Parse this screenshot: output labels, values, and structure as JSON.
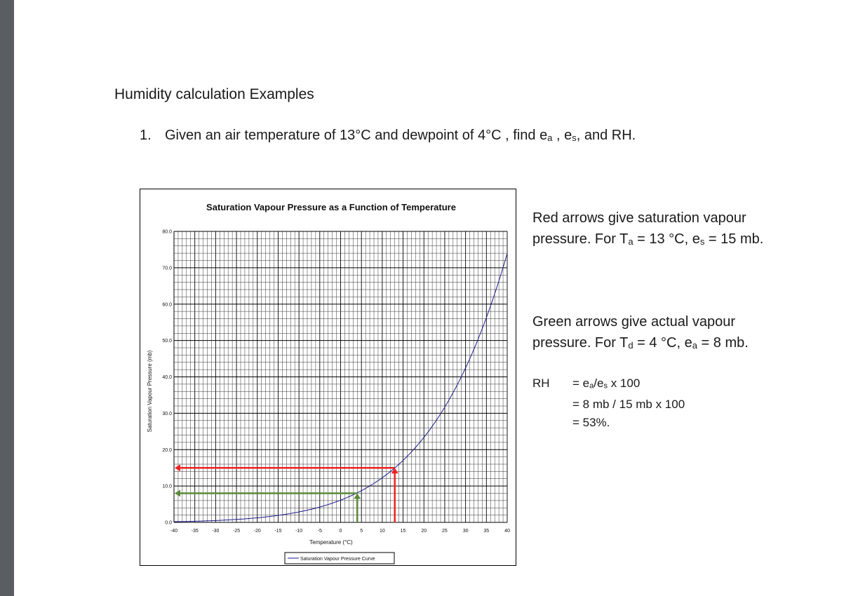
{
  "document": {
    "title": "Humidity calculation Examples",
    "question": {
      "number": "1.",
      "text_before": "Given an air temperature of 13°C and dewpoint of 4°C , find e",
      "sub_a": "a",
      "mid1": " , e",
      "sub_s": "s",
      "tail": ",  and RH."
    },
    "notes": {
      "red_1": "Red arrows give saturation vapour pressure. For T",
      "red_sub_t": "a",
      "red_2": " = 13 °C,  e",
      "red_sub_e": "s",
      "red_3": " = 15 mb.",
      "green_1": "Green arrows give actual vapour pressure. For T",
      "green_sub_t": "d",
      "green_2": " = 4 °C,  e",
      "green_sub_e": "a",
      "green_3": " = 8 mb."
    },
    "rh": {
      "label": "RH",
      "line1_a": "= e",
      "line1_sub1": "a",
      "line1_b": "/e",
      "line1_sub2": "s",
      "line1_c": " x 100",
      "line2": "= 8 mb / 15 mb  x 100",
      "line3": "= 53%."
    }
  },
  "chart_data": {
    "type": "line",
    "title": "Saturation Vapour Pressure as a Function of Temperature",
    "xlabel": "Temperature (°C)",
    "ylabel": "Saturation Vapour Pressure (mb)",
    "xlim": [
      -40,
      40
    ],
    "ylim": [
      0,
      80
    ],
    "x_ticks": [
      "-40",
      "-35",
      "-30",
      "-25",
      "-20",
      "-15",
      "-10",
      "-5",
      "0",
      "5",
      "10",
      "15",
      "20",
      "25",
      "30",
      "35",
      "40"
    ],
    "y_ticks": [
      "0.0",
      "10.0",
      "20.0",
      "30.0",
      "40.0",
      "50.0",
      "60.0",
      "70.0",
      "80.0"
    ],
    "grid": true,
    "legend": "bottom",
    "series": [
      {
        "name": "Saturation Vapour Pressure Curve",
        "color": "#1a1a8c",
        "x": [
          -40,
          -35,
          -30,
          -25,
          -20,
          -15,
          -10,
          -5,
          0,
          5,
          10,
          15,
          20,
          25,
          30,
          35,
          40
        ],
        "values": [
          0.19,
          0.31,
          0.51,
          0.81,
          1.25,
          1.91,
          2.86,
          4.22,
          6.11,
          8.72,
          12.28,
          17.06,
          23.39,
          31.7,
          42.47,
          56.26,
          73.79
        ]
      }
    ],
    "annotations": {
      "red_arrows": {
        "color": "#ee2222",
        "x": 13,
        "y": 15
      },
      "green_arrows": {
        "color": "#5a8a3a",
        "x": 4,
        "y": 8
      }
    }
  }
}
